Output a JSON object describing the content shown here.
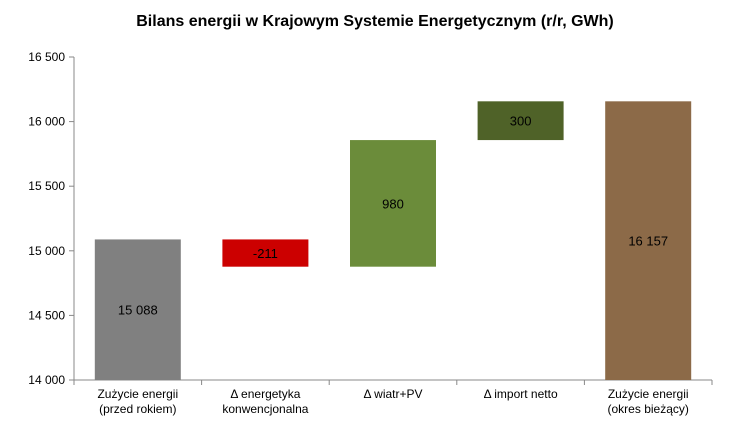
{
  "chart_data": {
    "type": "bar",
    "subtype": "waterfall",
    "title": "Bilans energii w Krajowym Systemie Energetycznym (r/r, GWh)",
    "categories": [
      [
        "Zużycie energii",
        "(przed rokiem)"
      ],
      [
        "Δ energetyka",
        "konwencjonalna"
      ],
      [
        "Δ wiatr+PV"
      ],
      [
        "Δ import netto"
      ],
      [
        "Zużycie energii",
        "(okres bieżący)"
      ]
    ],
    "bars": [
      {
        "kind": "total",
        "start": 14000,
        "end": 15088,
        "label": "15 088",
        "color": "#808080"
      },
      {
        "kind": "delta",
        "start": 15088,
        "end": 14877,
        "label": "-211",
        "color": "#cc0000"
      },
      {
        "kind": "delta",
        "start": 14877,
        "end": 15857,
        "label": "980",
        "color": "#6b8c3a"
      },
      {
        "kind": "delta",
        "start": 15857,
        "end": 16157,
        "label": "300",
        "color": "#4f6228"
      },
      {
        "kind": "total",
        "start": 14000,
        "end": 16157,
        "label": "16 157",
        "color": "#8c6a48"
      }
    ],
    "ylim": [
      14000,
      16500
    ],
    "yticks": [
      {
        "value": 14000,
        "label": "14 000"
      },
      {
        "value": 14500,
        "label": "14 500"
      },
      {
        "value": 15000,
        "label": "15 000"
      },
      {
        "value": 15500,
        "label": "15 500"
      },
      {
        "value": 16000,
        "label": "16 000"
      },
      {
        "value": 16500,
        "label": "16 500"
      }
    ],
    "grid": false,
    "legend": "none"
  }
}
